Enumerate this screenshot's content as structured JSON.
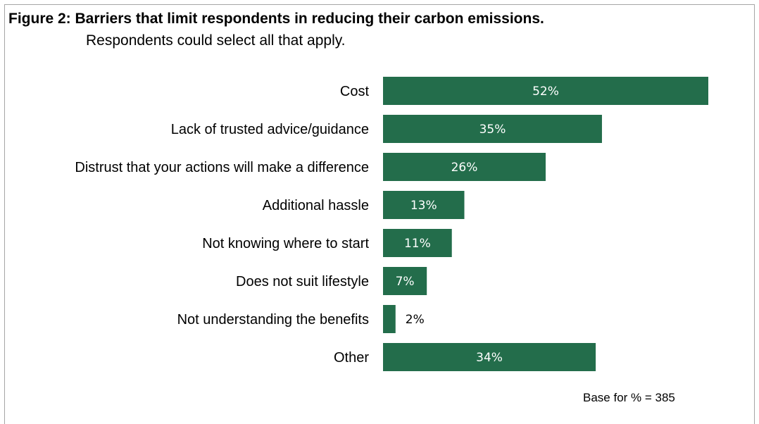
{
  "chart_data": {
    "type": "bar",
    "orientation": "horizontal",
    "title": "Figure 2: Barriers that limit respondents in reducing their carbon emissions.",
    "subtitle": "Respondents could select all that apply.",
    "categories": [
      "Cost",
      "Lack of trusted advice/guidance",
      "Distrust that your actions will make a difference",
      "Additional hassle",
      "Not knowing where to start",
      "Does not suit lifestyle",
      "Not understanding the benefits",
      "Other"
    ],
    "values": [
      52,
      35,
      26,
      13,
      11,
      7,
      2,
      34
    ],
    "value_labels": [
      "52%",
      "35%",
      "26%",
      "13%",
      "11%",
      "7%",
      "2%",
      "34%"
    ],
    "unit": "%",
    "bar_color": "#236d4b",
    "grid": false,
    "legend": "none",
    "note": "Base for % = 385"
  }
}
